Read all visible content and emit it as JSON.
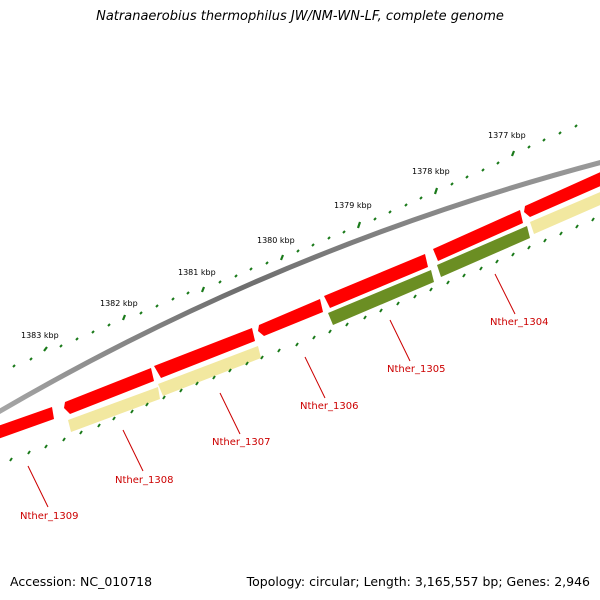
{
  "title": "Natranaerobius thermophilus JW/NM-WN-LF, complete genome",
  "footer": {
    "accession": "Accession: NC_010718",
    "summary": "Topology: circular; Length: 3,165,557 bp; Genes: 2,946"
  },
  "colors": {
    "backbone": "#808080",
    "gene_forward": "#ff0000",
    "gene_reverse_pale": "#f2e8a0",
    "gene_reverse_dark": "#6b8e23",
    "tick": "#1a7a1a",
    "label": "#cc0000"
  },
  "kbp_labels": [
    "1377 kbp",
    "1378 kbp",
    "1379 kbp",
    "1380 kbp",
    "1381 kbp",
    "1382 kbp",
    "1383 kbp"
  ],
  "gene_labels": [
    "Nther_1304",
    "Nther_1305",
    "Nther_1306",
    "Nther_1307",
    "Nther_1308",
    "Nther_1309"
  ]
}
